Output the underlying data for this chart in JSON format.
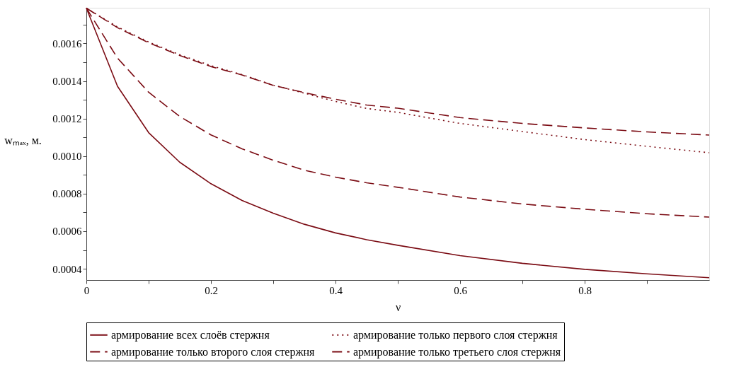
{
  "chart_data": {
    "type": "line",
    "xlabel": "ν",
    "ylabel": "wₘₐₓ, м.",
    "x": [
      0,
      0.05,
      0.1,
      0.15,
      0.2,
      0.25,
      0.3,
      0.35,
      0.4,
      0.45,
      0.5,
      0.6,
      0.7,
      0.8,
      0.9,
      1.0
    ],
    "series": [
      {
        "name": "армирование всех слоёв стержня",
        "color": "#7b0c14",
        "line_style": "solid",
        "values": [
          0.001788,
          0.001372,
          0.001125,
          0.000967,
          0.000853,
          0.000764,
          0.000696,
          0.000637,
          0.000591,
          0.000555,
          0.000525,
          0.00047,
          0.000429,
          0.000397,
          0.000373,
          0.000352
        ]
      },
      {
        "name": "армирование только первого слоя стержня",
        "color": "#7b0c14",
        "line_style": "dotted",
        "values": [
          0.001788,
          0.001688,
          0.001608,
          0.00154,
          0.001482,
          0.001434,
          0.001378,
          0.001335,
          0.001291,
          0.001254,
          0.001233,
          0.001174,
          0.001131,
          0.001088,
          0.001052,
          0.001018
        ]
      },
      {
        "name": "армирование только второго слоя стержня",
        "color": "#7b0c14",
        "line_style": "dashed",
        "values": [
          0.001788,
          0.001522,
          0.00134,
          0.001211,
          0.001113,
          0.001039,
          0.000978,
          0.000925,
          0.000888,
          0.000858,
          0.000834,
          0.000782,
          0.000745,
          0.000717,
          0.000693,
          0.000675
        ]
      },
      {
        "name": "армирование только третьего слоя стержня",
        "color": "#7b0c14",
        "line_style": "dashed",
        "values": [
          0.001788,
          0.001684,
          0.001604,
          0.001536,
          0.001477,
          0.001432,
          0.001377,
          0.001338,
          0.001303,
          0.001272,
          0.001255,
          0.001205,
          0.001174,
          0.00115,
          0.001129,
          0.001112
        ]
      }
    ],
    "xlim": [
      0,
      1
    ],
    "xticks": [
      0,
      {
        "value": 0.1,
        "label": null
      },
      0.2,
      {
        "value": 0.3,
        "label": null
      },
      0.4,
      {
        "value": 0.5,
        "label": null
      },
      0.6,
      {
        "value": 0.7,
        "label": null
      },
      0.8,
      {
        "value": 0.9,
        "label": null
      }
    ],
    "ylim": [
      0.00034,
      0.00179
    ],
    "yticks": [
      0.0004,
      {
        "value": 0.0005,
        "label": null
      },
      0.0006,
      {
        "value": 0.0007,
        "label": null
      },
      0.0008,
      {
        "value": 0.0009,
        "label": null
      },
      {
        "value": 0.001,
        "label": "0.0010"
      },
      {
        "value": 0.0011,
        "label": null
      },
      0.0012,
      {
        "value": 0.0013,
        "label": null
      },
      0.0014,
      {
        "value": 0.0015,
        "label": null
      },
      0.0016,
      {
        "value": 0.0017,
        "label": null
      }
    ],
    "grid": false,
    "legend": "bottom",
    "marker": "none"
  }
}
